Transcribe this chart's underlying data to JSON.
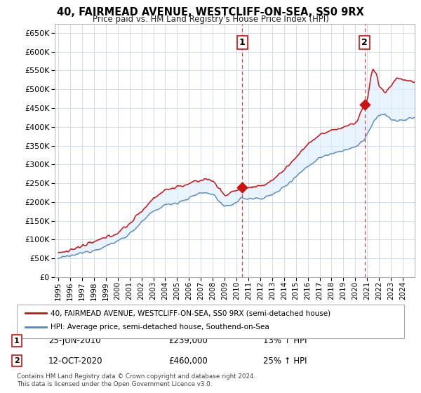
{
  "title": "40, FAIRMEAD AVENUE, WESTCLIFF-ON-SEA, SS0 9RX",
  "subtitle": "Price paid vs. HM Land Registry's House Price Index (HPI)",
  "ylim": [
    0,
    675000
  ],
  "yticks": [
    0,
    50000,
    100000,
    150000,
    200000,
    250000,
    300000,
    350000,
    400000,
    450000,
    500000,
    550000,
    600000,
    650000
  ],
  "xstart": 1995.0,
  "xend": 2025.0,
  "bg_color": "#ffffff",
  "grid_color": "#c8d8e8",
  "fill_color": "#ddeeff",
  "hpi_color": "#5588bb",
  "price_color": "#cc1111",
  "sale1": {
    "date_num": 2010.49,
    "price": 239000,
    "label": "1",
    "pct": "13%",
    "date_str": "25-JUN-2010",
    "display_price": "£239,000"
  },
  "sale2": {
    "date_num": 2020.79,
    "price": 460000,
    "label": "2",
    "pct": "25%",
    "date_str": "12-OCT-2020",
    "display_price": "£460,000"
  },
  "legend1_label": "40, FAIRMEAD AVENUE, WESTCLIFF-ON-SEA, SS0 9RX (semi-detached house)",
  "legend2_label": "HPI: Average price, semi-detached house, Southend-on-Sea",
  "footer": "Contains HM Land Registry data © Crown copyright and database right 2024.\nThis data is licensed under the Open Government Licence v3.0."
}
